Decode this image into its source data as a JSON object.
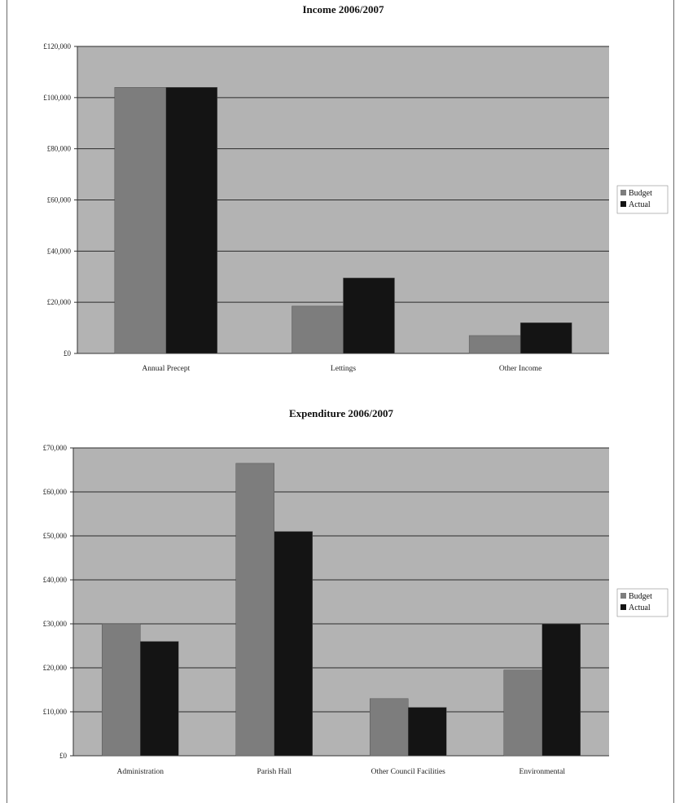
{
  "colors": {
    "plot_background": "#b3b3b3",
    "budget": "#7d7d7d",
    "actual": "#141414",
    "gridline": "#2b2b2b"
  },
  "legend_labels": [
    "Budget",
    "Actual"
  ],
  "chart_data": [
    {
      "type": "bar",
      "title": "Income 2006/2007",
      "categories": [
        "Annual Precept",
        "Lettings",
        "Other Income"
      ],
      "series": [
        {
          "name": "Budget",
          "values": [
            104000,
            18500,
            7000
          ]
        },
        {
          "name": "Actual",
          "values": [
            104000,
            29500,
            12000
          ]
        }
      ],
      "ylim": [
        0,
        120000
      ],
      "yticks": [
        0,
        20000,
        40000,
        60000,
        80000,
        100000,
        120000
      ],
      "ytick_labels": [
        "£0",
        "£20,000",
        "£40,000",
        "£60,000",
        "£80,000",
        "£100,000",
        "£120,000"
      ],
      "grid": true,
      "legend": "right"
    },
    {
      "type": "bar",
      "title": "Expenditure 2006/2007",
      "categories": [
        "Administration",
        "Parish Hall",
        "Other Council Facilities",
        "Environmental"
      ],
      "series": [
        {
          "name": "Budget",
          "values": [
            30000,
            66500,
            13000,
            19500
          ]
        },
        {
          "name": "Actual",
          "values": [
            26000,
            51000,
            11000,
            30000
          ]
        }
      ],
      "ylim": [
        0,
        70000
      ],
      "yticks": [
        0,
        10000,
        20000,
        30000,
        40000,
        50000,
        60000,
        70000
      ],
      "ytick_labels": [
        "£0",
        "£10,000",
        "£20,000",
        "£30,000",
        "£40,000",
        "£50,000",
        "£60,000",
        "£70,000"
      ],
      "grid": true,
      "legend": "right"
    }
  ]
}
